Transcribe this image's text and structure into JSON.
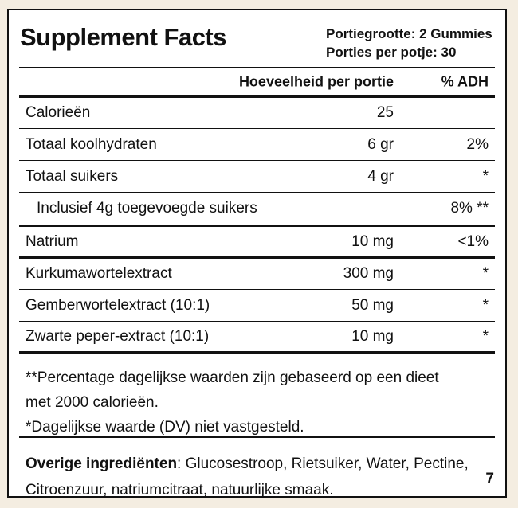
{
  "header": {
    "title": "Supplement Facts",
    "serving_size": "Portiegrootte: 2 Gummies",
    "servings_per_container": "Porties per potje: 30"
  },
  "table": {
    "columns": [
      "Hoeveelheid per portie",
      "% ADH"
    ],
    "rows": [
      [
        "Calorieën",
        "25",
        ""
      ],
      [
        "Totaal koolhydraten",
        "6 gr",
        "2%"
      ],
      [
        "Totaal suikers",
        "4 gr",
        "*"
      ],
      [
        "Inclusief 4g toegevoegde suikers",
        "",
        "8% **"
      ],
      [
        "Natrium",
        "10 mg",
        "<1%"
      ],
      [
        "Kurkumawortelextract",
        "300 mg",
        "*"
      ],
      [
        "Gemberwortelextract (10:1)",
        "50 mg",
        "*"
      ],
      [
        "Zwarte peper-extract (10:1)",
        "10 mg",
        "*"
      ]
    ]
  },
  "footnotes": [
    "**Percentage dagelijkse waarden zijn gebaseerd op een dieet met 2000 calorieën.",
    "*Dagelijkse waarde (DV) niet vastgesteld."
  ],
  "ingredients": {
    "label": "Overige ingrediënten",
    "text": ": Glucosestroop, Rietsuiker, Water, Pectine, Citroenzuur, natriumcitraat, natuurlijke smaak."
  },
  "page_number": "7"
}
